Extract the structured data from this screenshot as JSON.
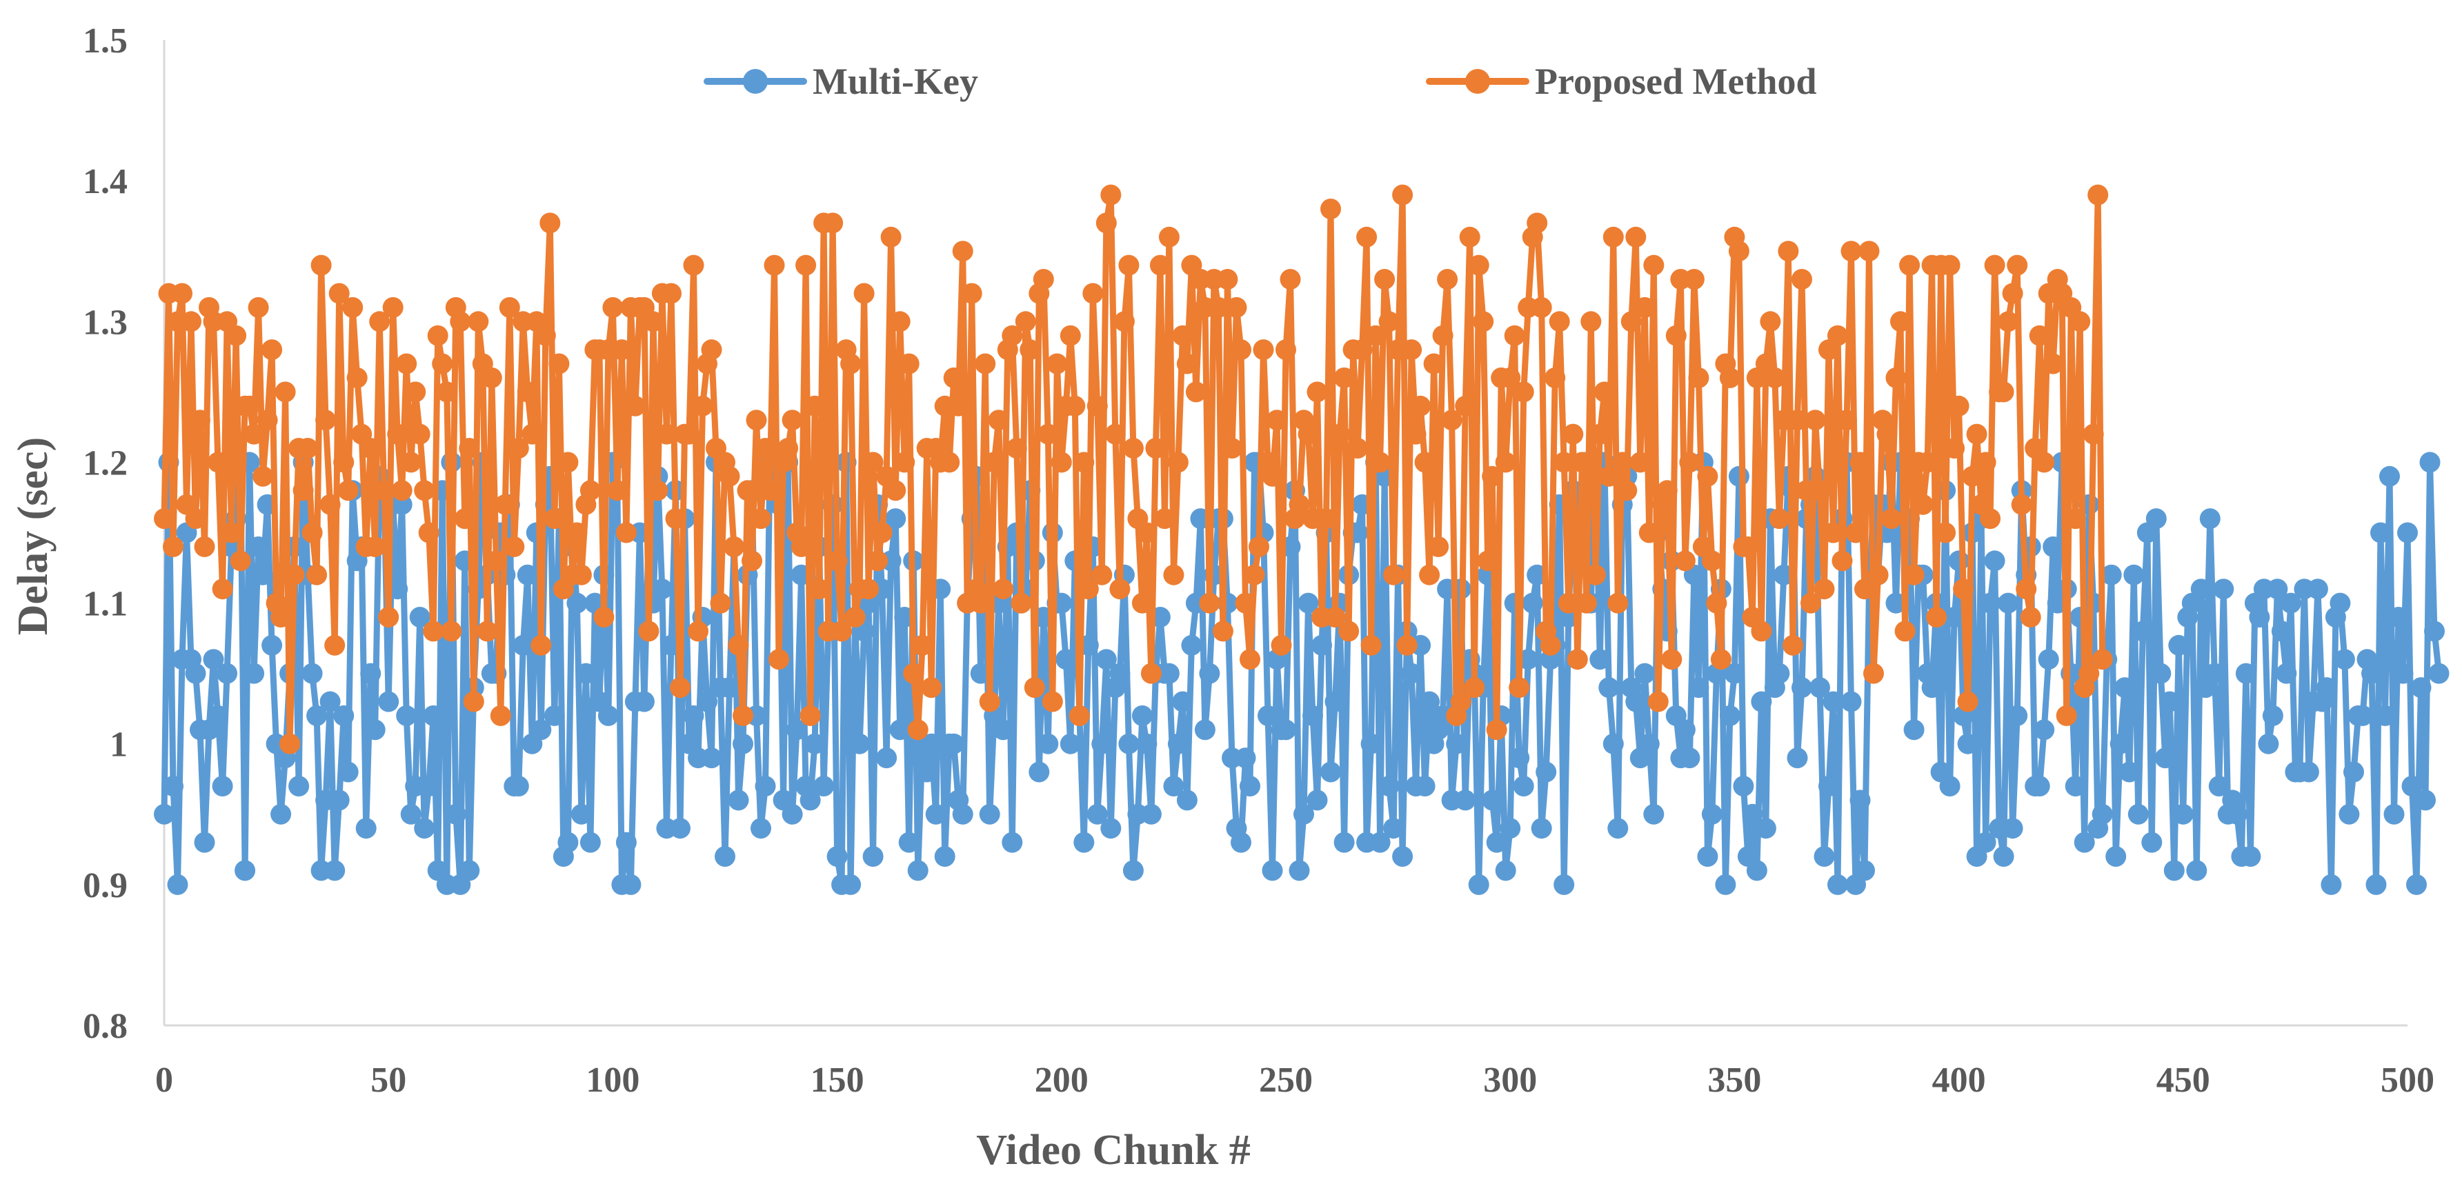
{
  "chart_data": {
    "type": "line",
    "title": "",
    "xlabel": "Video Chunk #",
    "ylabel": "Delay (sec)",
    "xlim": [
      0,
      500
    ],
    "ylim": [
      0.8,
      1.5
    ],
    "x_ticks": [
      0,
      50,
      100,
      150,
      200,
      250,
      300,
      350,
      400,
      450,
      500
    ],
    "y_ticks": [
      0.8,
      0.9,
      1,
      1.1,
      1.2,
      1.3,
      1.4,
      1.5
    ],
    "y_tick_labels": [
      "0.8",
      "0.9",
      "1",
      "1.1",
      "1.2",
      "1.3",
      "1.4",
      "1.5"
    ],
    "legend_position": "top-center",
    "x_start": 0,
    "x_step": 1,
    "series": [
      {
        "name": "Multi-Key",
        "color": "#5B9BD5",
        "values": [
          0.95,
          1.2,
          0.97,
          0.9,
          1.06,
          1.15,
          1.06,
          1.05,
          1.01,
          0.93,
          1.01,
          1.06,
          1.02,
          0.97,
          1.05,
          1.14,
          1.16,
          1.2,
          0.91,
          1.2,
          1.05,
          1.14,
          1.12,
          1.17,
          1.07,
          1.0,
          0.95,
          0.99,
          1.05,
          1.14,
          0.97,
          1.2,
          1.12,
          1.05,
          1.02,
          0.91,
          0.96,
          1.03,
          0.91,
          0.96,
          1.02,
          0.98,
          1.18,
          1.13,
          1.14,
          0.94,
          1.05,
          1.01,
          1.19,
          1.18,
          1.03,
          1.17,
          1.11,
          1.17,
          1.02,
          0.95,
          0.97,
          1.09,
          0.94,
          0.97,
          1.02,
          0.91,
          1.18,
          0.9,
          1.2,
          0.95,
          0.9,
          1.13,
          0.91,
          1.04,
          1.11,
          1.2,
          1.12,
          1.05,
          1.05,
          1.15,
          1.12,
          1.17,
          0.97,
          0.97,
          1.07,
          1.12,
          1.0,
          1.15,
          1.01,
          1.17,
          1.19,
          1.02,
          1.16,
          0.92,
          0.93,
          1.14,
          1.1,
          0.95,
          1.05,
          0.93,
          1.1,
          1.03,
          1.12,
          1.02,
          1.2,
          1.18,
          0.9,
          0.93,
          0.9,
          1.03,
          1.15,
          1.03,
          1.15,
          1.1,
          1.19,
          1.11,
          0.94,
          1.07,
          1.18,
          0.94,
          1.16,
          1.0,
          1.02,
          0.99,
          1.09,
          1.03,
          0.99,
          1.2,
          1.04,
          0.92,
          1.04,
          1.14,
          0.96,
          1.0,
          1.12,
          1.18,
          1.02,
          0.94,
          0.97,
          1.2,
          1.19,
          1.17,
          0.96,
          1.2,
          0.95,
          1.01,
          1.12,
          0.97,
          0.96,
          1.0,
          1.14,
          0.97,
          1.08,
          1.17,
          0.92,
          0.9,
          1.2,
          0.9,
          1.09,
          1.0,
          1.08,
          1.1,
          0.92,
          1.17,
          1.11,
          0.99,
          1.13,
          1.16,
          1.01,
          1.09,
          0.93,
          1.13,
          0.91,
          1.0,
          0.98,
          1.0,
          0.95,
          1.11,
          0.92,
          1.0,
          1.0,
          0.96,
          0.95,
          1.1,
          1.16,
          1.19,
          1.05,
          1.16,
          0.95,
          1.02,
          1.1,
          1.01,
          1.14,
          0.93,
          1.15,
          1.1,
          1.11,
          1.18,
          1.13,
          0.98,
          1.09,
          1.0,
          1.15,
          1.1,
          1.1,
          1.06,
          1.0,
          1.13,
          1.02,
          0.93,
          1.07,
          1.14,
          0.95,
          1.0,
          1.06,
          0.94,
          1.04,
          1.05,
          1.12,
          1.0,
          0.91,
          0.95,
          1.02,
          1.0,
          0.95,
          1.05,
          1.09,
          1.05,
          1.05,
          0.97,
          1.0,
          1.03,
          0.96,
          1.07,
          1.1,
          1.16,
          1.01,
          1.05,
          1.12,
          1.16,
          1.16,
          1.1,
          0.99,
          0.94,
          0.93,
          0.99,
          0.97,
          1.2,
          1.2,
          1.15,
          1.02,
          0.91,
          1.06,
          1.01,
          1.01,
          1.14,
          1.18,
          0.91,
          0.95,
          1.1,
          1.02,
          0.96,
          1.07,
          1.15,
          0.98,
          1.03,
          1.1,
          0.93,
          1.12,
          1.15,
          1.15,
          1.17,
          0.93,
          1.0,
          1.2,
          0.93,
          1.19,
          0.97,
          0.94,
          1.12,
          0.92,
          1.08,
          1.05,
          0.97,
          1.07,
          0.97,
          1.03,
          1.0,
          1.01,
          1.02,
          1.11,
          0.96,
          1.0,
          1.11,
          0.96,
          1.06,
          1.05,
          0.9,
          1.04,
          1.12,
          0.96,
          0.93,
          1.02,
          0.91,
          0.94,
          1.1,
          0.99,
          0.97,
          1.06,
          1.1,
          1.12,
          0.94,
          0.98,
          1.06,
          1.07,
          1.17,
          0.9,
          1.09,
          1.18,
          1.13,
          1.17,
          1.2,
          1.1,
          1.2,
          1.06,
          1.2,
          1.04,
          1.0,
          0.94,
          1.17,
          1.19,
          1.04,
          1.03,
          0.99,
          1.05,
          1.0,
          0.95,
          1.15,
          1.11,
          1.08,
          1.13,
          1.02,
          0.99,
          1.01,
          0.99,
          1.12,
          1.04,
          1.2,
          0.92,
          0.95,
          1.05,
          1.11,
          0.9,
          1.02,
          1.05,
          1.19,
          0.97,
          0.92,
          0.95,
          0.91,
          1.03,
          0.94,
          1.16,
          1.04,
          1.05,
          1.12,
          1.19,
          1.18,
          0.99,
          1.04,
          1.16,
          1.17,
          1.19,
          1.04,
          0.92,
          0.97,
          1.03,
          0.9,
          1.16,
          1.2,
          1.03,
          0.9,
          0.96,
          0.91,
          1.11,
          1.17,
          1.12,
          1.17,
          1.15,
          1.2,
          1.1,
          1.2,
          1.16,
          1.16,
          1.01,
          1.12,
          1.12,
          1.05,
          1.04,
          1.1,
          0.98,
          1.18,
          0.97,
          1.09,
          1.13,
          1.02,
          1.0,
          1.15,
          0.92,
          1.16,
          0.93,
          1.1,
          1.13,
          0.94,
          0.92,
          1.1,
          0.94,
          1.02,
          1.18,
          1.12,
          1.14,
          0.97,
          0.97,
          1.01,
          1.06,
          1.14,
          1.1,
          1.2,
          1.11,
          1.05,
          0.97,
          1.09,
          0.93,
          1.17,
          1.1,
          0.94,
          0.95,
          1.06,
          1.12,
          0.92,
          1.0,
          1.04,
          0.98,
          1.12,
          0.95,
          1.08,
          1.15,
          0.93,
          1.16,
          1.05,
          0.99,
          1.03,
          0.91,
          1.07,
          0.95,
          1.09,
          1.1,
          0.91,
          1.11,
          1.04,
          1.16,
          1.05,
          0.97,
          1.11,
          0.95,
          0.96,
          0.95,
          0.92,
          1.05,
          0.92,
          1.1,
          1.09,
          1.11,
          1.0,
          1.02,
          1.11,
          1.08,
          1.05,
          1.1,
          0.98,
          0.98,
          1.11,
          0.98,
          1.03,
          1.11,
          1.03,
          1.04,
          0.9,
          1.09,
          1.1,
          1.06,
          0.95,
          0.98,
          1.02,
          1.02,
          1.06,
          1.05,
          0.9,
          1.15,
          1.02,
          1.19,
          0.95,
          1.09,
          1.05,
          1.15,
          0.97,
          0.9,
          1.04,
          0.96,
          1.2,
          1.08,
          1.05
        ]
      },
      {
        "name": "Proposed Method",
        "color": "#ED7D31",
        "values": [
          1.16,
          1.32,
          1.14,
          1.3,
          1.32,
          1.17,
          1.3,
          1.16,
          1.23,
          1.14,
          1.31,
          1.3,
          1.2,
          1.11,
          1.3,
          1.15,
          1.29,
          1.13,
          1.24,
          1.24,
          1.22,
          1.31,
          1.19,
          1.23,
          1.28,
          1.1,
          1.09,
          1.25,
          1.0,
          1.12,
          1.21,
          1.18,
          1.21,
          1.15,
          1.12,
          1.34,
          1.23,
          1.17,
          1.07,
          1.32,
          1.2,
          1.18,
          1.31,
          1.26,
          1.22,
          1.14,
          1.21,
          1.14,
          1.3,
          1.18,
          1.09,
          1.31,
          1.22,
          1.18,
          1.27,
          1.2,
          1.25,
          1.22,
          1.18,
          1.15,
          1.08,
          1.29,
          1.27,
          1.25,
          1.08,
          1.31,
          1.3,
          1.16,
          1.21,
          1.03,
          1.3,
          1.27,
          1.08,
          1.26,
          1.13,
          1.02,
          1.17,
          1.31,
          1.14,
          1.21,
          1.3,
          1.25,
          1.22,
          1.3,
          1.07,
          1.29,
          1.37,
          1.16,
          1.27,
          1.11,
          1.2,
          1.12,
          1.15,
          1.12,
          1.17,
          1.18,
          1.28,
          1.28,
          1.09,
          1.28,
          1.31,
          1.18,
          1.28,
          1.15,
          1.31,
          1.24,
          1.31,
          1.31,
          1.08,
          1.3,
          1.18,
          1.32,
          1.22,
          1.32,
          1.16,
          1.04,
          1.22,
          1.22,
          1.34,
          1.08,
          1.24,
          1.27,
          1.28,
          1.21,
          1.1,
          1.2,
          1.19,
          1.14,
          1.07,
          1.02,
          1.18,
          1.13,
          1.23,
          1.16,
          1.21,
          1.18,
          1.34,
          1.06,
          1.2,
          1.21,
          1.23,
          1.15,
          1.14,
          1.34,
          1.02,
          1.24,
          1.11,
          1.37,
          1.08,
          1.37,
          1.13,
          1.08,
          1.28,
          1.27,
          1.09,
          1.11,
          1.32,
          1.11,
          1.2,
          1.13,
          1.15,
          1.19,
          1.36,
          1.18,
          1.3,
          1.2,
          1.27,
          1.05,
          1.01,
          1.07,
          1.21,
          1.04,
          1.21,
          1.2,
          1.24,
          1.2,
          1.26,
          1.24,
          1.35,
          1.1,
          1.32,
          1.11,
          1.1,
          1.27,
          1.03,
          1.2,
          1.23,
          1.11,
          1.28,
          1.29,
          1.21,
          1.1,
          1.3,
          1.28,
          1.04,
          1.32,
          1.33,
          1.22,
          1.03,
          1.27,
          1.2,
          1.24,
          1.29,
          1.24,
          1.02,
          1.2,
          1.11,
          1.32,
          1.24,
          1.12,
          1.37,
          1.39,
          1.22,
          1.11,
          1.3,
          1.34,
          1.21,
          1.16,
          1.1,
          1.15,
          1.05,
          1.21,
          1.34,
          1.16,
          1.36,
          1.12,
          1.2,
          1.29,
          1.27,
          1.34,
          1.25,
          1.33,
          1.31,
          1.1,
          1.33,
          1.31,
          1.08,
          1.33,
          1.21,
          1.31,
          1.28,
          1.1,
          1.06,
          1.12,
          1.14,
          1.28,
          1.2,
          1.19,
          1.23,
          1.07,
          1.28,
          1.33,
          1.16,
          1.17,
          1.23,
          1.22,
          1.16,
          1.25,
          1.09,
          1.16,
          1.38,
          1.09,
          1.22,
          1.26,
          1.08,
          1.28,
          1.21,
          1.28,
          1.36,
          1.07,
          1.29,
          1.2,
          1.33,
          1.3,
          1.12,
          1.28,
          1.39,
          1.07,
          1.28,
          1.22,
          1.24,
          1.2,
          1.12,
          1.27,
          1.14,
          1.29,
          1.33,
          1.23,
          1.02,
          1.03,
          1.24,
          1.36,
          1.04,
          1.34,
          1.3,
          1.13,
          1.19,
          1.01,
          1.26,
          1.2,
          1.26,
          1.29,
          1.04,
          1.25,
          1.31,
          1.36,
          1.37,
          1.31,
          1.08,
          1.07,
          1.26,
          1.3,
          1.2,
          1.1,
          1.22,
          1.06,
          1.2,
          1.1,
          1.3,
          1.12,
          1.22,
          1.25,
          1.19,
          1.36,
          1.1,
          1.2,
          1.18,
          1.3,
          1.36,
          1.2,
          1.31,
          1.15,
          1.34,
          1.03,
          1.17,
          1.18,
          1.06,
          1.29,
          1.33,
          1.13,
          1.2,
          1.33,
          1.26,
          1.14,
          1.19,
          1.13,
          1.1,
          1.06,
          1.27,
          1.26,
          1.36,
          1.35,
          1.14,
          1.14,
          1.09,
          1.26,
          1.08,
          1.27,
          1.3,
          1.26,
          1.16,
          1.23,
          1.35,
          1.07,
          1.23,
          1.33,
          1.18,
          1.1,
          1.23,
          1.18,
          1.11,
          1.28,
          1.15,
          1.29,
          1.13,
          1.23,
          1.35,
          1.15,
          1.2,
          1.11,
          1.35,
          1.05,
          1.12,
          1.23,
          1.22,
          1.16,
          1.26,
          1.3,
          1.08,
          1.34,
          1.12,
          1.2,
          1.17,
          1.2,
          1.34,
          1.09,
          1.34,
          1.15,
          1.34,
          1.21,
          1.24,
          1.11,
          1.03,
          1.19,
          1.22,
          1.17,
          1.2,
          1.16,
          1.34,
          1.25,
          1.25,
          1.3,
          1.32,
          1.34,
          1.17,
          1.11,
          1.09,
          1.21,
          1.29,
          1.2,
          1.32,
          1.27,
          1.33,
          1.32,
          1.02,
          1.31,
          1.16,
          1.3,
          1.04,
          1.05,
          1.22,
          1.39,
          1.06
        ]
      }
    ]
  }
}
